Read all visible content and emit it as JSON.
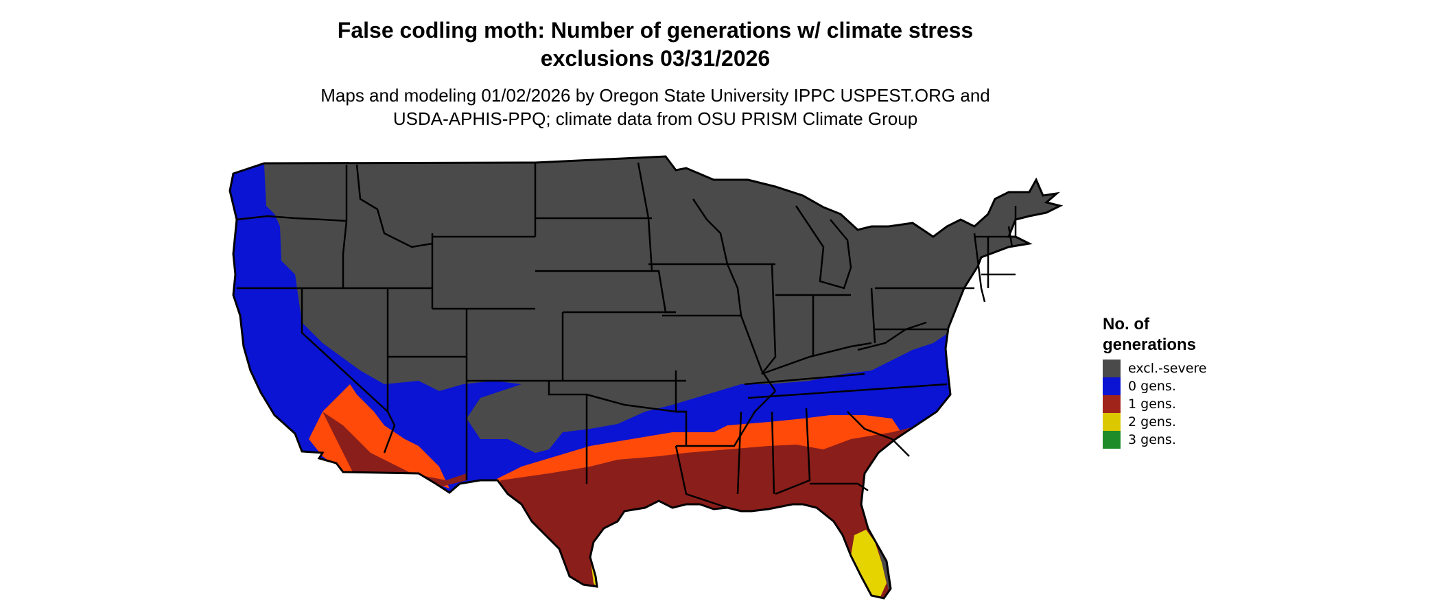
{
  "title": [
    "False codling moth: Number of generations w/ climate stress",
    "exclusions 03/31/2026"
  ],
  "subtitle": [
    "Maps and modeling 01/02/2026 by Oregon State University IPPC USPEST.ORG and",
    "USDA-APHIS-PPQ; climate data from OSU PRISM Climate Group"
  ],
  "legend": {
    "title": [
      "No. of",
      "generations"
    ],
    "items": [
      {
        "label": "excl.-severe",
        "color": "#4a4a4a"
      },
      {
        "label": "0 gens.",
        "color": "#0a14d2"
      },
      {
        "label": "1 gens.",
        "color": "#a0241a"
      },
      {
        "label": "2 gens.",
        "color": "#dcc800"
      },
      {
        "label": "3 gens.",
        "color": "#1e8c28"
      }
    ]
  },
  "colors": {
    "excluded": "#4a4a4a",
    "zero": "#0a14d2",
    "one_dark": "#8a1e1a",
    "one_bright": "#ff4a0a",
    "two": "#e6d400",
    "two_dark": "#c8a400",
    "border": "#000000"
  }
}
